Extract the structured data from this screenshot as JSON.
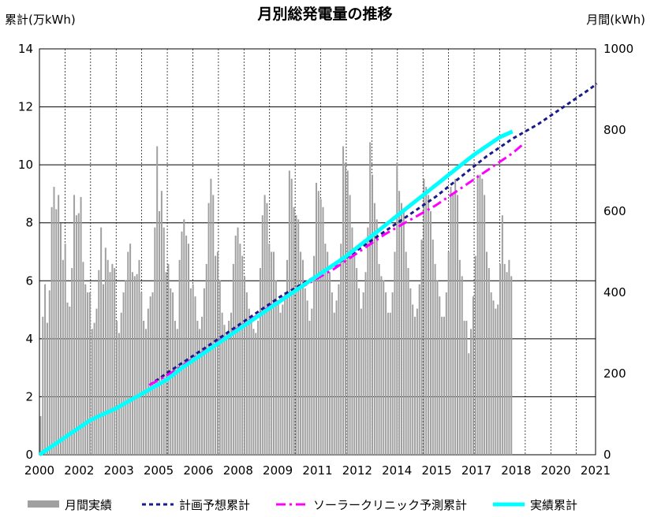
{
  "chart_data": {
    "type": "bar+line",
    "title": "月別総発電量の推移",
    "y_left_label": "累計(万kWh)",
    "y_right_label": "月間(kWh)",
    "y_left_ticks": [
      "0",
      "2",
      "4",
      "6",
      "8",
      "10",
      "12",
      "14"
    ],
    "y_right_ticks": [
      "0",
      "200",
      "400",
      "600",
      "800",
      "1000"
    ],
    "x_tick_labels": [
      "2000",
      "2002",
      "2003",
      "2005",
      "2006",
      "2008",
      "2009",
      "2011",
      "2012",
      "2014",
      "2015",
      "2017",
      "2018",
      "2020",
      "2021"
    ],
    "ylim_left": [
      0,
      14
    ],
    "ylim_right": [
      0,
      1000
    ],
    "grid": "on",
    "legend_position": "bottom",
    "monthly_bars": {
      "name": "月間実績",
      "color": "#a0a0a0",
      "values_kwh": [
        95,
        340,
        420,
        325,
        405,
        610,
        660,
        605,
        640,
        570,
        480,
        520,
        375,
        365,
        460,
        640,
        590,
        595,
        635,
        475,
        420,
        400,
        400,
        310,
        325,
        360,
        455,
        560,
        420,
        510,
        480,
        450,
        470,
        460,
        330,
        300,
        350,
        400,
        430,
        500,
        520,
        450,
        440,
        445,
        480,
        400,
        330,
        310,
        360,
        390,
        400,
        560,
        760,
        600,
        650,
        560,
        450,
        470,
        410,
        400,
        330,
        310,
        480,
        550,
        580,
        540,
        520,
        410,
        420,
        390,
        330,
        310,
        340,
        410,
        470,
        620,
        680,
        640,
        490,
        500,
        430,
        350,
        320,
        300,
        330,
        350,
        470,
        540,
        560,
        520,
        490,
        440,
        400,
        360,
        330,
        310,
        300,
        330,
        460,
        590,
        640,
        620,
        520,
        500,
        500,
        430,
        380,
        350,
        370,
        400,
        480,
        700,
        680,
        610,
        590,
        580,
        500,
        480,
        410,
        380,
        330,
        360,
        490,
        670,
        650,
        630,
        610,
        520,
        500,
        450,
        400,
        350,
        380,
        420,
        520,
        760,
        720,
        700,
        640,
        560,
        500,
        460,
        410,
        360,
        400,
        450,
        560,
        770,
        690,
        620,
        580,
        470,
        440,
        430,
        400,
        350,
        350,
        400,
        500,
        720,
        650,
        620,
        600,
        500,
        460,
        410,
        370,
        340,
        360,
        420,
        530,
        680,
        660,
        640,
        600,
        530,
        470,
        430,
        390,
        340,
        340,
        400,
        500,
        660,
        640,
        680,
        640,
        480,
        440,
        330,
        330,
        250,
        310,
        390,
        490,
        690,
        690,
        680,
        640,
        500,
        460,
        400,
        380,
        360,
        370,
        470,
        590,
        470,
        450,
        480,
        440
      ],
      "years": [
        2000,
        2018.5
      ]
    },
    "series": [
      {
        "name": "計画予想累計",
        "color": "#1a1a8c",
        "style": "dashed",
        "points": [
          [
            2004.3,
            2.4
          ],
          [
            2005.3,
            3.0
          ],
          [
            2006.5,
            3.7
          ],
          [
            2007.5,
            4.3
          ],
          [
            2008.5,
            4.9
          ],
          [
            2009.5,
            5.5
          ],
          [
            2010.5,
            6.0
          ],
          [
            2011.5,
            6.5
          ],
          [
            2012.5,
            7.1
          ],
          [
            2013.5,
            7.7
          ],
          [
            2014.5,
            8.3
          ],
          [
            2015.5,
            8.9
          ],
          [
            2016.5,
            9.6
          ],
          [
            2017.5,
            10.3
          ],
          [
            2018.5,
            10.9
          ],
          [
            2019.5,
            11.4
          ],
          [
            2020.5,
            12.0
          ],
          [
            2021.5,
            12.6
          ],
          [
            2021.8,
            12.8
          ]
        ]
      },
      {
        "name": "ソーラークリニック予測累計",
        "color": "#ff00ff",
        "style": "dashdot",
        "points": [
          [
            2004.3,
            2.4
          ],
          [
            2005.3,
            2.9
          ],
          [
            2006.5,
            3.6
          ],
          [
            2007.5,
            4.2
          ],
          [
            2008.5,
            4.8
          ],
          [
            2009.5,
            5.4
          ],
          [
            2010.5,
            5.9
          ],
          [
            2011.5,
            6.4
          ],
          [
            2012.5,
            7.0
          ],
          [
            2013.5,
            7.6
          ],
          [
            2014.5,
            8.1
          ],
          [
            2015.5,
            8.6
          ],
          [
            2016.5,
            9.2
          ],
          [
            2017.5,
            9.8
          ],
          [
            2018.5,
            10.4
          ],
          [
            2018.9,
            10.7
          ]
        ]
      },
      {
        "name": "実績累計",
        "color": "#00ffff",
        "style": "solid",
        "points": [
          [
            2000.0,
            0.0
          ],
          [
            2000.5,
            0.3
          ],
          [
            2001.0,
            0.6
          ],
          [
            2001.5,
            0.9
          ],
          [
            2002.0,
            1.2
          ],
          [
            2002.5,
            1.4
          ],
          [
            2003.0,
            1.6
          ],
          [
            2003.5,
            1.85
          ],
          [
            2004.0,
            2.1
          ],
          [
            2004.5,
            2.35
          ],
          [
            2005.0,
            2.6
          ],
          [
            2005.5,
            2.95
          ],
          [
            2006.0,
            3.25
          ],
          [
            2006.5,
            3.55
          ],
          [
            2007.0,
            3.85
          ],
          [
            2007.5,
            4.15
          ],
          [
            2008.0,
            4.45
          ],
          [
            2008.5,
            4.75
          ],
          [
            2009.0,
            5.05
          ],
          [
            2009.5,
            5.35
          ],
          [
            2010.0,
            5.65
          ],
          [
            2010.5,
            5.95
          ],
          [
            2011.0,
            6.25
          ],
          [
            2011.5,
            6.55
          ],
          [
            2012.0,
            6.85
          ],
          [
            2012.5,
            7.2
          ],
          [
            2013.0,
            7.55
          ],
          [
            2013.5,
            7.9
          ],
          [
            2014.0,
            8.25
          ],
          [
            2014.5,
            8.6
          ],
          [
            2015.0,
            8.95
          ],
          [
            2015.5,
            9.3
          ],
          [
            2016.0,
            9.65
          ],
          [
            2016.5,
            10.0
          ],
          [
            2017.0,
            10.35
          ],
          [
            2017.5,
            10.65
          ],
          [
            2018.0,
            10.95
          ],
          [
            2018.5,
            11.15
          ]
        ]
      }
    ],
    "legend": [
      "月間実績",
      "計画予想累計",
      "ソーラークリニック予測累計",
      "実績累計"
    ]
  }
}
